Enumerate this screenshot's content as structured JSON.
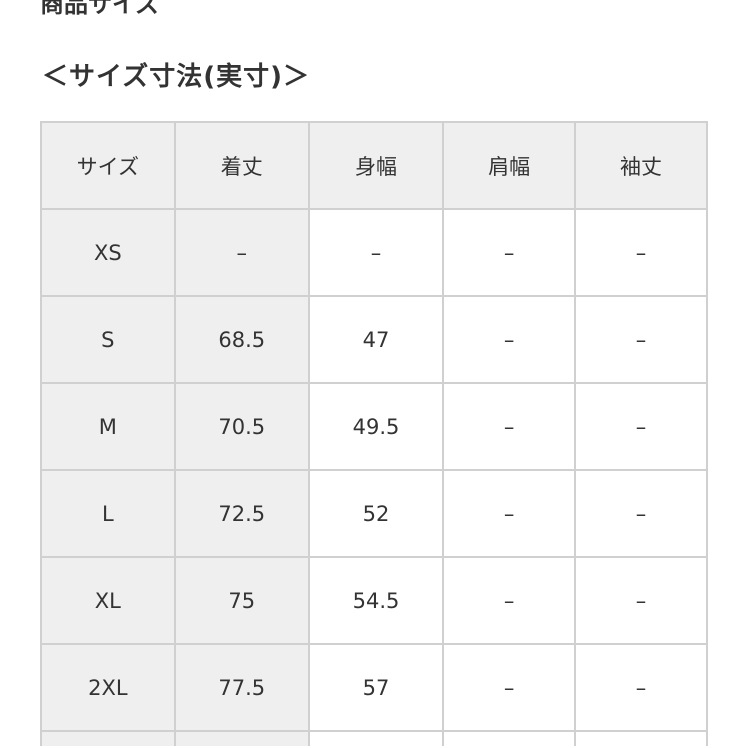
{
  "previous_heading": "商品サイズ",
  "title": "＜サイズ寸法(実寸)＞",
  "table": {
    "headers": [
      "サイズ",
      "着丈",
      "身幅",
      "肩幅",
      "袖丈"
    ],
    "rows": [
      [
        "XS",
        "–",
        "–",
        "–",
        "–"
      ],
      [
        "S",
        "68.5",
        "47",
        "–",
        "–"
      ],
      [
        "M",
        "70.5",
        "49.5",
        "–",
        "–"
      ],
      [
        "L",
        "72.5",
        "52",
        "–",
        "–"
      ],
      [
        "XL",
        "75",
        "54.5",
        "–",
        "–"
      ],
      [
        "2XL",
        "77.5",
        "57",
        "–",
        "–"
      ],
      [
        "",
        "",
        "",
        "",
        ""
      ]
    ]
  }
}
